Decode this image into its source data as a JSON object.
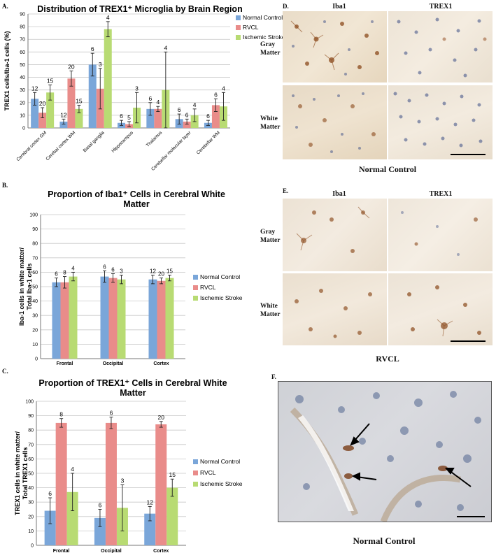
{
  "colors": {
    "normal": "#7aa6d9",
    "rvcl": "#e98c8a",
    "ischemic": "#b8db73",
    "grid": "#c8c8c8",
    "axis": "#777777"
  },
  "legend_labels": [
    "Normal Control",
    "RVCL",
    "Ischemic Stroke"
  ],
  "chart_data": [
    {
      "panel": "A.",
      "type": "bar",
      "title": "Distribution of TREX1⁺ Microglia by Brain Region",
      "ylabel": "TREX1 cells/Iba-1 cells (%)",
      "xlabel": "",
      "ylim": [
        0,
        90
      ],
      "yticks": [
        "0",
        "10",
        "20",
        "30",
        "40",
        "50",
        "60",
        "70",
        "80",
        "90"
      ],
      "categories": [
        "Cerebral cortex GM",
        "Cerebal cortex WM",
        "Basal ganglia",
        "Hippocampus",
        "Thalamus",
        "Cerebellar molecular layer",
        "Cerebellar WM"
      ],
      "legend_position": "right",
      "grid": true,
      "series": [
        {
          "name": "Normal Control",
          "values": [
            23,
            5,
            50,
            4,
            15,
            7,
            4
          ],
          "errors": [
            5,
            2,
            9,
            2,
            5,
            4,
            2
          ],
          "n_labels": [
            "12",
            "12",
            "6",
            "6",
            "6",
            "6",
            "6"
          ]
        },
        {
          "name": "RVCL",
          "values": [
            12,
            39,
            31,
            3,
            15,
            5,
            18
          ],
          "errors": [
            4,
            6,
            16,
            2,
            2,
            2,
            5
          ],
          "n_labels": [
            "20",
            "20",
            "3",
            "5",
            "4",
            "6",
            "6"
          ]
        },
        {
          "name": "Ischemic Stroke",
          "values": [
            28,
            15,
            78,
            16,
            30,
            10,
            17
          ],
          "errors": [
            6,
            3,
            6,
            12,
            30,
            5,
            11
          ],
          "n_labels": [
            "15",
            "15",
            "4",
            "3",
            "4",
            "4",
            "4"
          ]
        }
      ]
    },
    {
      "panel": "B.",
      "type": "bar",
      "title": "Proportion of Iba1⁺ Cells in Cerebral White Matter",
      "title_lines": [
        "Proportion of Iba1⁺ Cells in Cerebral White",
        "Matter"
      ],
      "ylabel_lines": [
        "Iba-1 cells in white matter/",
        "Total Iba-1 cells"
      ],
      "xlabel": "",
      "ylim": [
        0,
        100
      ],
      "yticks": [
        "0",
        "10",
        "20",
        "30",
        "40",
        "50",
        "60",
        "70",
        "80",
        "90",
        "100"
      ],
      "categories": [
        "Frontal",
        "Occipital",
        "Cortex"
      ],
      "legend_position": "right",
      "grid": true,
      "series": [
        {
          "name": "Normal Control",
          "values": [
            53,
            57,
            55
          ],
          "errors": [
            3,
            4,
            3
          ],
          "n_labels": [
            "6",
            "6",
            "12"
          ]
        },
        {
          "name": "RVCL",
          "values": [
            53,
            56,
            54
          ],
          "errors": [
            4,
            3,
            2
          ],
          "n_labels": [
            "8",
            "6",
            "20"
          ]
        },
        {
          "name": "Ischemic Stroke",
          "values": [
            57,
            55,
            56
          ],
          "errors": [
            3,
            3,
            2
          ],
          "n_labels": [
            "4",
            "3",
            "15"
          ]
        }
      ]
    },
    {
      "panel": "C.",
      "type": "bar",
      "title": "Proportion of TREX1⁺ Cells in Cerebral White Matter",
      "title_lines": [
        "Proportion of TREX1⁺ Cells in Cerebral White",
        "Matter"
      ],
      "ylabel_lines": [
        "TREX1 cells in white matter/",
        "Total TREX1 cells"
      ],
      "xlabel": "",
      "ylim": [
        0,
        100
      ],
      "yticks": [
        "0",
        "10",
        "20",
        "30",
        "40",
        "50",
        "60",
        "70",
        "80",
        "90",
        "100"
      ],
      "categories": [
        "Frontal",
        "Occipital",
        "Cortex"
      ],
      "legend_position": "right",
      "grid": true,
      "series": [
        {
          "name": "Normal Control",
          "values": [
            24,
            19,
            22
          ],
          "errors": [
            9,
            6,
            5
          ],
          "n_labels": [
            "6",
            "6",
            "12"
          ]
        },
        {
          "name": "RVCL",
          "values": [
            85,
            85,
            84
          ],
          "errors": [
            3,
            4,
            2
          ],
          "n_labels": [
            "8",
            "6",
            "20"
          ]
        },
        {
          "name": "Ischemic Stroke",
          "values": [
            37,
            26,
            40
          ],
          "errors": [
            13,
            16,
            6
          ],
          "n_labels": [
            "4",
            "3",
            "15"
          ]
        }
      ]
    }
  ],
  "micrographs": {
    "D": {
      "letter": "D.",
      "col_labels": [
        "Iba1",
        "TREX1"
      ],
      "row_labels": [
        "Gray\nMatter",
        "White\nMatter"
      ],
      "caption": "Normal Control"
    },
    "E": {
      "letter": "E.",
      "col_labels": [
        "Iba1",
        "TREX1"
      ],
      "row_labels": [
        "Gray\nMatter",
        "White\nMatter"
      ],
      "caption": "RVCL"
    },
    "F": {
      "letter": "F.",
      "caption": "Normal Control"
    }
  }
}
